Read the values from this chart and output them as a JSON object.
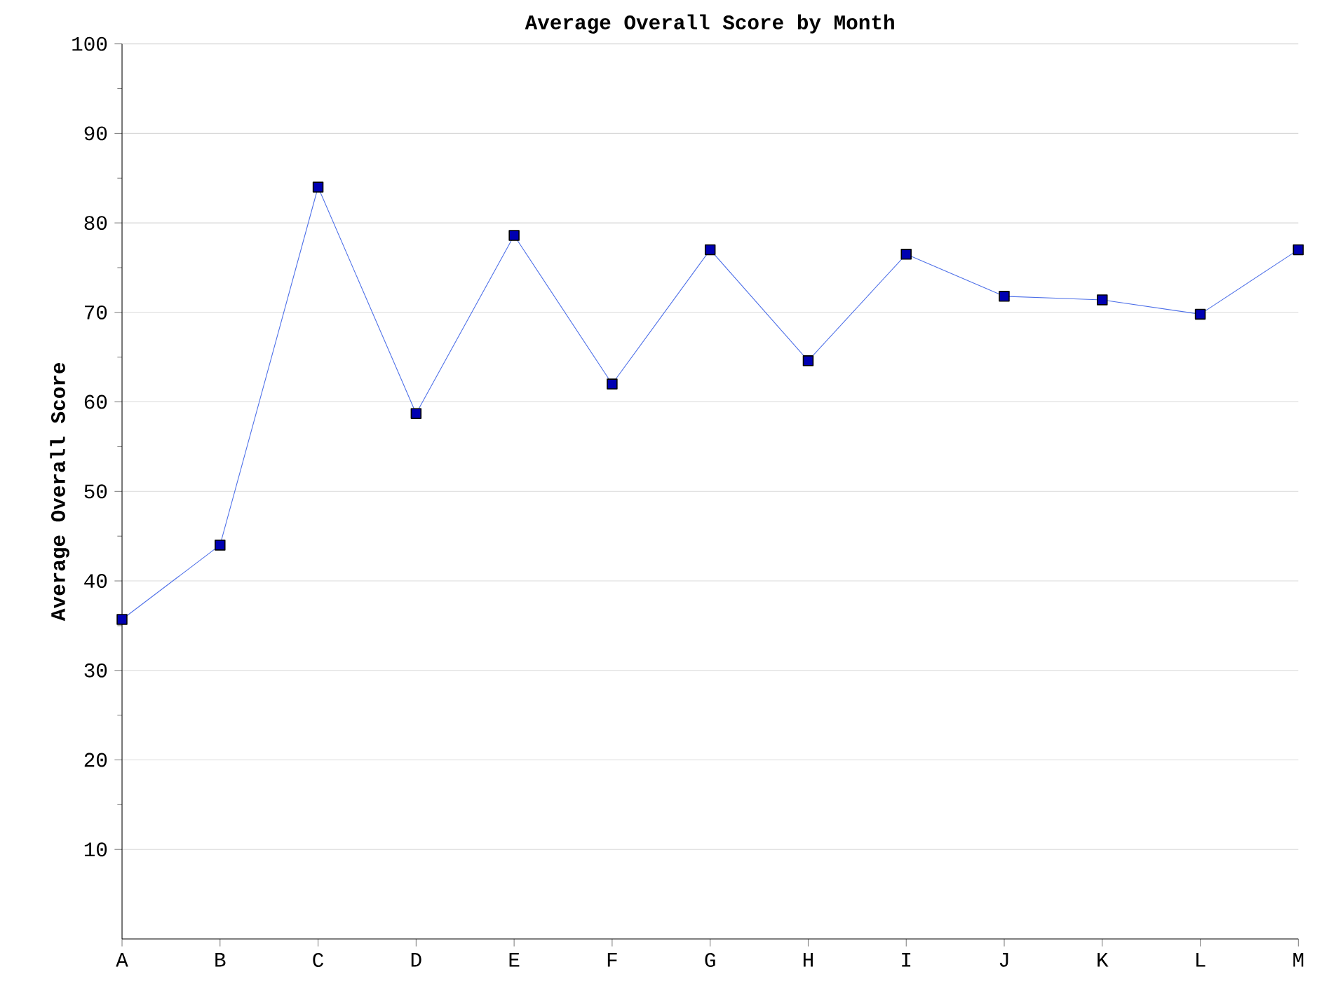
{
  "chart_data": {
    "type": "line",
    "title": "Average Overall Score by Month",
    "ylabel": "Average Overall Score",
    "categories": [
      "A",
      "B",
      "C",
      "D",
      "E",
      "F",
      "G",
      "H",
      "I",
      "J",
      "K",
      "L",
      "M"
    ],
    "series": [
      {
        "color": "#4d6fe8",
        "values": [
          35.7,
          44.0,
          84.0,
          58.7,
          78.6,
          62.0,
          77.0,
          64.6,
          76.5,
          71.8,
          71.4,
          69.8,
          77.0
        ]
      }
    ],
    "ylim": [
      0,
      100
    ],
    "yticks": [
      10,
      20,
      30,
      40,
      50,
      60,
      70,
      80,
      90,
      100
    ],
    "grid": "y",
    "marker": "square",
    "line_style": "solid"
  }
}
